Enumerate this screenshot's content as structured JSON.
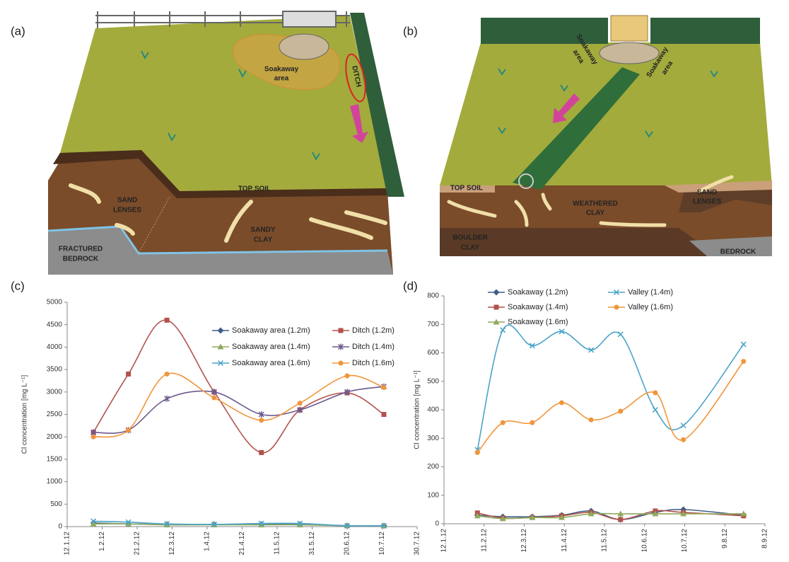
{
  "illustrations": [
    {
      "label": "(a)",
      "soakaway_area": [
        "Soakaway",
        "area"
      ],
      "ditch": "DITCH",
      "top_soil": "TOP SOIL",
      "sand_lenses": [
        "SAND",
        "LENSES"
      ],
      "sandy_clay": [
        "SANDY",
        "CLAY"
      ],
      "fractured_bedrock": [
        "FRACTURED",
        "BEDROCK"
      ]
    },
    {
      "label": "(b)",
      "soakaway_area_left": [
        "Soakaway",
        "area"
      ],
      "soakaway_area_right": [
        "Soakaway",
        "area"
      ],
      "top_soil": "TOP SOIL",
      "weathered_clay": [
        "WEATHERED",
        "CLAY"
      ],
      "sand_lenses": [
        "SAND",
        "LENSES"
      ],
      "boulder_clay": [
        "BOULDER",
        "CLAY"
      ],
      "bedrock": "BEDROCK"
    }
  ],
  "chart_data": [
    {
      "type": "line",
      "label": "(c)",
      "ylabel": "Cl concentration [mg L⁻¹]",
      "legend": "upper right",
      "x": [
        15,
        35,
        57,
        84,
        111,
        133,
        160,
        181
      ],
      "xlim": [
        0,
        200
      ],
      "xticks": [
        {
          "value": 0,
          "label": "12.1.12"
        },
        {
          "value": 20,
          "label": "1.2.12"
        },
        {
          "value": 40,
          "label": "21.2.12"
        },
        {
          "value": 60,
          "label": "12.3.12"
        },
        {
          "value": 80,
          "label": "1.4.12"
        },
        {
          "value": 100,
          "label": "21.4.12"
        },
        {
          "value": 120,
          "label": "11.5.12"
        },
        {
          "value": 140,
          "label": "31.5.12"
        },
        {
          "value": 160,
          "label": "20.6.12"
        },
        {
          "value": 180,
          "label": "10.7.12"
        },
        {
          "value": 200,
          "label": "30.7.12"
        }
      ],
      "ylim": [
        0,
        5000
      ],
      "yticks": [
        0,
        500,
        1000,
        1500,
        2000,
        2500,
        3000,
        3500,
        4000,
        4500,
        5000
      ],
      "series": [
        {
          "name": "Soakaway area (1.2m)",
          "color": "#3e5f8a",
          "marker": "diamond",
          "values": [
            80,
            60,
            50,
            50,
            50,
            50,
            20,
            20
          ]
        },
        {
          "name": "Ditch (1.2m)",
          "color": "#b2524b",
          "marker": "square",
          "values": [
            2100,
            3400,
            4600,
            3000,
            1650,
            2600,
            2980,
            2500
          ]
        },
        {
          "name": "Soakaway area (1.4m)",
          "color": "#8faa5c",
          "marker": "triangle",
          "values": [
            60,
            60,
            40,
            40,
            40,
            40,
            20,
            20
          ]
        },
        {
          "name": "Ditch (1.4m)",
          "color": "#6e5a8e",
          "marker": "star",
          "values": [
            2100,
            2150,
            2850,
            3000,
            2500,
            2600,
            3000,
            3120
          ]
        },
        {
          "name": "Soakaway area (1.6m)",
          "color": "#4aa3c9",
          "marker": "x",
          "values": [
            120,
            100,
            60,
            50,
            70,
            70,
            20,
            20
          ]
        },
        {
          "name": "Ditch (1.6m)",
          "color": "#f0953a",
          "marker": "circle",
          "values": [
            2000,
            2150,
            3400,
            2870,
            2370,
            2750,
            3360,
            3100
          ]
        }
      ]
    },
    {
      "type": "line",
      "label": "(d)",
      "ylabel": "Cl concentration [mg L⁻¹]",
      "legend": "upper right",
      "x": [
        25,
        44,
        66,
        88,
        110,
        132,
        158,
        179,
        224
      ],
      "xlim": [
        0,
        240
      ],
      "xticks": [
        {
          "value": 0,
          "label": "12.1.12"
        },
        {
          "value": 30,
          "label": "11.2.12"
        },
        {
          "value": 60,
          "label": "12.3.12"
        },
        {
          "value": 90,
          "label": "11.4.12"
        },
        {
          "value": 120,
          "label": "11.5.12"
        },
        {
          "value": 150,
          "label": "10.6.12"
        },
        {
          "value": 180,
          "label": "10.7.12"
        },
        {
          "value": 210,
          "label": "9.8.12"
        },
        {
          "value": 240,
          "label": "8.9.12"
        }
      ],
      "ylim": [
        0,
        800
      ],
      "yticks": [
        0,
        100,
        200,
        300,
        400,
        500,
        600,
        700,
        800
      ],
      "series": [
        {
          "name": "Soakaway (1.2m)",
          "color": "#3e5f8a",
          "marker": "diamond",
          "values": [
            30,
            25,
            25,
            30,
            45,
            15,
            40,
            50,
            30
          ]
        },
        {
          "name": "Valley (1.4m)",
          "color": "#4aa3c9",
          "marker": "x",
          "values": [
            260,
            680,
            625,
            675,
            610,
            665,
            400,
            345,
            630
          ]
        },
        {
          "name": "Soakaway (1.4m)",
          "color": "#b2524b",
          "marker": "square",
          "values": [
            38,
            20,
            22,
            28,
            40,
            15,
            45,
            40,
            28
          ]
        },
        {
          "name": "Valley (1.6m)",
          "color": "#f0953a",
          "marker": "circle",
          "values": [
            250,
            355,
            355,
            425,
            365,
            395,
            460,
            295,
            570
          ]
        },
        {
          "name": "Soakaway (1.6m)",
          "color": "#8faa5c",
          "marker": "triangle",
          "values": [
            28,
            18,
            22,
            22,
            35,
            35,
            35,
            35,
            35
          ]
        }
      ]
    }
  ]
}
